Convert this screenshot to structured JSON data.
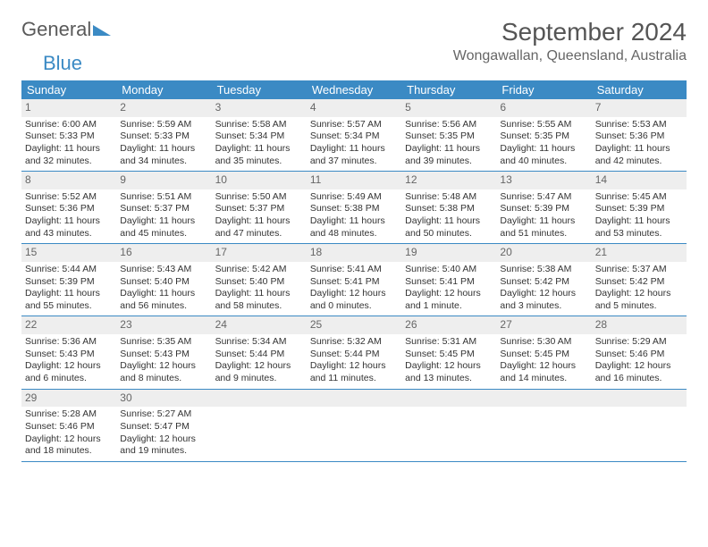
{
  "logo": {
    "text1": "General",
    "text2": "Blue"
  },
  "title": "September 2024",
  "location": "Wongawallan, Queensland, Australia",
  "colors": {
    "header_bg": "#3b8ac4",
    "header_text": "#ffffff",
    "daynum_bg": "#eeeeee",
    "daynum_text": "#666666",
    "text": "#333333",
    "rule": "#3b8ac4"
  },
  "weekdays": [
    "Sunday",
    "Monday",
    "Tuesday",
    "Wednesday",
    "Thursday",
    "Friday",
    "Saturday"
  ],
  "weeks": [
    [
      {
        "n": "1",
        "sunrise": "Sunrise: 6:00 AM",
        "sunset": "Sunset: 5:33 PM",
        "d1": "Daylight: 11 hours",
        "d2": "and 32 minutes."
      },
      {
        "n": "2",
        "sunrise": "Sunrise: 5:59 AM",
        "sunset": "Sunset: 5:33 PM",
        "d1": "Daylight: 11 hours",
        "d2": "and 34 minutes."
      },
      {
        "n": "3",
        "sunrise": "Sunrise: 5:58 AM",
        "sunset": "Sunset: 5:34 PM",
        "d1": "Daylight: 11 hours",
        "d2": "and 35 minutes."
      },
      {
        "n": "4",
        "sunrise": "Sunrise: 5:57 AM",
        "sunset": "Sunset: 5:34 PM",
        "d1": "Daylight: 11 hours",
        "d2": "and 37 minutes."
      },
      {
        "n": "5",
        "sunrise": "Sunrise: 5:56 AM",
        "sunset": "Sunset: 5:35 PM",
        "d1": "Daylight: 11 hours",
        "d2": "and 39 minutes."
      },
      {
        "n": "6",
        "sunrise": "Sunrise: 5:55 AM",
        "sunset": "Sunset: 5:35 PM",
        "d1": "Daylight: 11 hours",
        "d2": "and 40 minutes."
      },
      {
        "n": "7",
        "sunrise": "Sunrise: 5:53 AM",
        "sunset": "Sunset: 5:36 PM",
        "d1": "Daylight: 11 hours",
        "d2": "and 42 minutes."
      }
    ],
    [
      {
        "n": "8",
        "sunrise": "Sunrise: 5:52 AM",
        "sunset": "Sunset: 5:36 PM",
        "d1": "Daylight: 11 hours",
        "d2": "and 43 minutes."
      },
      {
        "n": "9",
        "sunrise": "Sunrise: 5:51 AM",
        "sunset": "Sunset: 5:37 PM",
        "d1": "Daylight: 11 hours",
        "d2": "and 45 minutes."
      },
      {
        "n": "10",
        "sunrise": "Sunrise: 5:50 AM",
        "sunset": "Sunset: 5:37 PM",
        "d1": "Daylight: 11 hours",
        "d2": "and 47 minutes."
      },
      {
        "n": "11",
        "sunrise": "Sunrise: 5:49 AM",
        "sunset": "Sunset: 5:38 PM",
        "d1": "Daylight: 11 hours",
        "d2": "and 48 minutes."
      },
      {
        "n": "12",
        "sunrise": "Sunrise: 5:48 AM",
        "sunset": "Sunset: 5:38 PM",
        "d1": "Daylight: 11 hours",
        "d2": "and 50 minutes."
      },
      {
        "n": "13",
        "sunrise": "Sunrise: 5:47 AM",
        "sunset": "Sunset: 5:39 PM",
        "d1": "Daylight: 11 hours",
        "d2": "and 51 minutes."
      },
      {
        "n": "14",
        "sunrise": "Sunrise: 5:45 AM",
        "sunset": "Sunset: 5:39 PM",
        "d1": "Daylight: 11 hours",
        "d2": "and 53 minutes."
      }
    ],
    [
      {
        "n": "15",
        "sunrise": "Sunrise: 5:44 AM",
        "sunset": "Sunset: 5:39 PM",
        "d1": "Daylight: 11 hours",
        "d2": "and 55 minutes."
      },
      {
        "n": "16",
        "sunrise": "Sunrise: 5:43 AM",
        "sunset": "Sunset: 5:40 PM",
        "d1": "Daylight: 11 hours",
        "d2": "and 56 minutes."
      },
      {
        "n": "17",
        "sunrise": "Sunrise: 5:42 AM",
        "sunset": "Sunset: 5:40 PM",
        "d1": "Daylight: 11 hours",
        "d2": "and 58 minutes."
      },
      {
        "n": "18",
        "sunrise": "Sunrise: 5:41 AM",
        "sunset": "Sunset: 5:41 PM",
        "d1": "Daylight: 12 hours",
        "d2": "and 0 minutes."
      },
      {
        "n": "19",
        "sunrise": "Sunrise: 5:40 AM",
        "sunset": "Sunset: 5:41 PM",
        "d1": "Daylight: 12 hours",
        "d2": "and 1 minute."
      },
      {
        "n": "20",
        "sunrise": "Sunrise: 5:38 AM",
        "sunset": "Sunset: 5:42 PM",
        "d1": "Daylight: 12 hours",
        "d2": "and 3 minutes."
      },
      {
        "n": "21",
        "sunrise": "Sunrise: 5:37 AM",
        "sunset": "Sunset: 5:42 PM",
        "d1": "Daylight: 12 hours",
        "d2": "and 5 minutes."
      }
    ],
    [
      {
        "n": "22",
        "sunrise": "Sunrise: 5:36 AM",
        "sunset": "Sunset: 5:43 PM",
        "d1": "Daylight: 12 hours",
        "d2": "and 6 minutes."
      },
      {
        "n": "23",
        "sunrise": "Sunrise: 5:35 AM",
        "sunset": "Sunset: 5:43 PM",
        "d1": "Daylight: 12 hours",
        "d2": "and 8 minutes."
      },
      {
        "n": "24",
        "sunrise": "Sunrise: 5:34 AM",
        "sunset": "Sunset: 5:44 PM",
        "d1": "Daylight: 12 hours",
        "d2": "and 9 minutes."
      },
      {
        "n": "25",
        "sunrise": "Sunrise: 5:32 AM",
        "sunset": "Sunset: 5:44 PM",
        "d1": "Daylight: 12 hours",
        "d2": "and 11 minutes."
      },
      {
        "n": "26",
        "sunrise": "Sunrise: 5:31 AM",
        "sunset": "Sunset: 5:45 PM",
        "d1": "Daylight: 12 hours",
        "d2": "and 13 minutes."
      },
      {
        "n": "27",
        "sunrise": "Sunrise: 5:30 AM",
        "sunset": "Sunset: 5:45 PM",
        "d1": "Daylight: 12 hours",
        "d2": "and 14 minutes."
      },
      {
        "n": "28",
        "sunrise": "Sunrise: 5:29 AM",
        "sunset": "Sunset: 5:46 PM",
        "d1": "Daylight: 12 hours",
        "d2": "and 16 minutes."
      }
    ],
    [
      {
        "n": "29",
        "sunrise": "Sunrise: 5:28 AM",
        "sunset": "Sunset: 5:46 PM",
        "d1": "Daylight: 12 hours",
        "d2": "and 18 minutes."
      },
      {
        "n": "30",
        "sunrise": "Sunrise: 5:27 AM",
        "sunset": "Sunset: 5:47 PM",
        "d1": "Daylight: 12 hours",
        "d2": "and 19 minutes."
      },
      {
        "empty": true
      },
      {
        "empty": true
      },
      {
        "empty": true
      },
      {
        "empty": true
      },
      {
        "empty": true
      }
    ]
  ]
}
